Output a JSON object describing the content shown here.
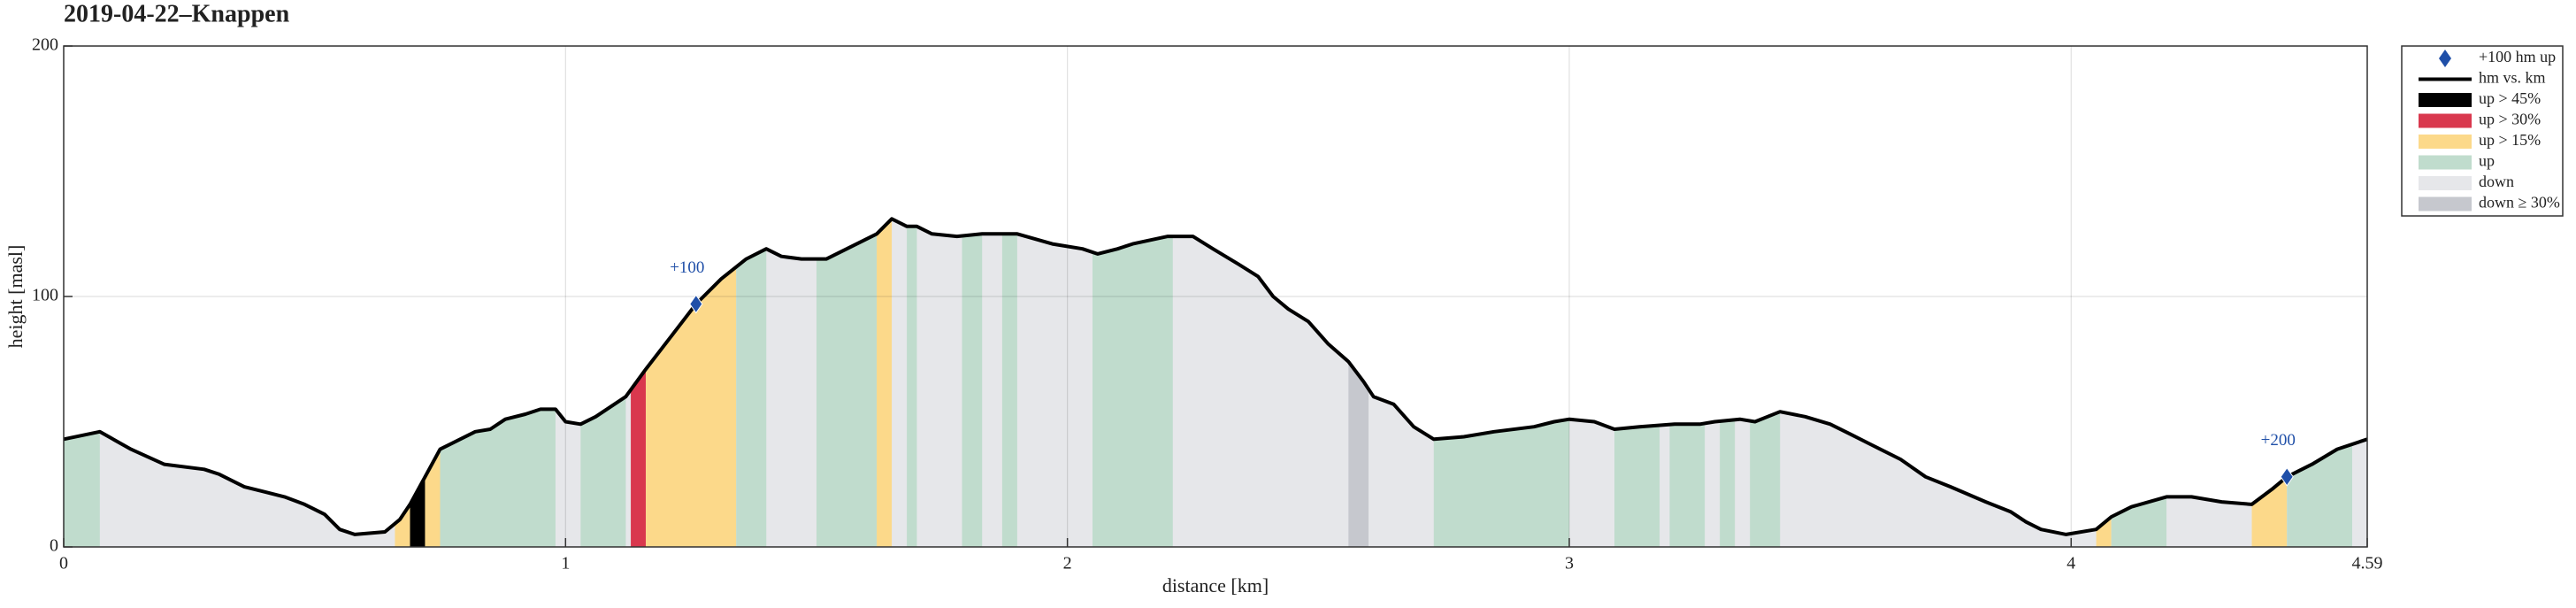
{
  "chart_data": {
    "type": "area",
    "title": "2019-04-22–Knappen",
    "xlabel": "distance [km]",
    "ylabel": "height [masl]",
    "xlim": [
      0,
      4.59
    ],
    "ylim": [
      0,
      200
    ],
    "xticks": [
      0,
      1,
      2,
      3,
      4,
      4.59
    ],
    "yticks": [
      0,
      100,
      200
    ],
    "grid": true,
    "x": [
      0,
      0.072,
      0.134,
      0.2,
      0.28,
      0.31,
      0.36,
      0.4,
      0.44,
      0.48,
      0.52,
      0.55,
      0.58,
      0.64,
      0.67,
      0.69,
      0.72,
      0.75,
      0.82,
      0.85,
      0.88,
      0.92,
      0.95,
      0.98,
      1.0,
      1.03,
      1.06,
      1.12,
      1.16,
      1.21,
      1.26,
      1.31,
      1.36,
      1.4,
      1.43,
      1.47,
      1.52,
      1.57,
      1.62,
      1.65,
      1.68,
      1.7,
      1.73,
      1.78,
      1.83,
      1.9,
      1.97,
      2.03,
      2.06,
      2.1,
      2.13,
      2.2,
      2.25,
      2.29,
      2.34,
      2.38,
      2.41,
      2.44,
      2.48,
      2.52,
      2.56,
      2.59,
      2.61,
      2.65,
      2.69,
      2.73,
      2.79,
      2.85,
      2.93,
      2.97,
      3.0,
      3.05,
      3.09,
      3.14,
      3.21,
      3.26,
      3.29,
      3.34,
      3.37,
      3.42,
      3.47,
      3.52,
      3.56,
      3.6,
      3.66,
      3.71,
      3.76,
      3.83,
      3.88,
      3.91,
      3.94,
      3.99,
      4.05,
      4.08,
      4.12,
      4.19,
      4.24,
      4.3,
      4.36,
      4.4,
      4.43,
      4.48,
      4.53,
      4.59
    ],
    "series": [
      {
        "name": "hm vs. km",
        "color": "#000000",
        "values": [
          43,
          46,
          39,
          33,
          31,
          29,
          24,
          22,
          20,
          17,
          13,
          7,
          5,
          6,
          11,
          17,
          28,
          39,
          46,
          47,
          51,
          53,
          55,
          55,
          50,
          49,
          52,
          60,
          71,
          84,
          97,
          107,
          115,
          119,
          116,
          115,
          115,
          120,
          125,
          131,
          128,
          128,
          125,
          124,
          125,
          125,
          121,
          119,
          117,
          119,
          121,
          124,
          124,
          119,
          113,
          108,
          100,
          95,
          90,
          81,
          74,
          66,
          60,
          57,
          48,
          43,
          44,
          46,
          48,
          50,
          51,
          50,
          47,
          48,
          49,
          49,
          50,
          51,
          50,
          54,
          52,
          49,
          45,
          41,
          35,
          28,
          24,
          18,
          14,
          10,
          7,
          5,
          7,
          12,
          16,
          20,
          20,
          18,
          17,
          23,
          28,
          33,
          39,
          43
        ]
      }
    ],
    "markers": {
      "name": "+100 hm up",
      "color": "#1f4fa8",
      "x": [
        1.26,
        4.43
      ],
      "y": [
        97,
        28
      ],
      "labels": [
        "+100",
        "+200"
      ]
    },
    "bands": [
      {
        "name": "up > 45%",
        "color": "#000000",
        "ranges": [
          [
            0.69,
            0.72
          ]
        ]
      },
      {
        "name": "up > 30%",
        "color": "#d9384e",
        "ranges": [
          [
            1.13,
            1.16
          ]
        ]
      },
      {
        "name": "up > 15%",
        "color": "#fcd98a",
        "ranges": [
          [
            0.66,
            0.69
          ],
          [
            0.72,
            0.75
          ],
          [
            1.16,
            1.34
          ],
          [
            1.62,
            1.65
          ],
          [
            4.05,
            4.08
          ],
          [
            4.36,
            4.43
          ]
        ]
      },
      {
        "name": "up",
        "color": "#c0dccd",
        "ranges": [
          [
            0,
            0.072
          ],
          [
            0.75,
            0.98
          ],
          [
            1.03,
            1.12
          ],
          [
            1.34,
            1.4
          ],
          [
            1.5,
            1.62
          ],
          [
            1.68,
            1.7
          ],
          [
            1.79,
            1.83
          ],
          [
            1.87,
            1.9
          ],
          [
            2.05,
            2.21
          ],
          [
            2.73,
            3.0
          ],
          [
            3.09,
            3.18
          ],
          [
            3.2,
            3.27
          ],
          [
            3.3,
            3.33
          ],
          [
            3.36,
            3.42
          ],
          [
            4.08,
            4.19
          ],
          [
            4.43,
            4.56
          ]
        ]
      },
      {
        "name": "down",
        "color": "#e6e7ea"
      },
      {
        "name": "down ≥ 30%",
        "color": "#c6c8ce",
        "ranges": [
          [
            2.56,
            2.6
          ]
        ]
      }
    ]
  }
}
